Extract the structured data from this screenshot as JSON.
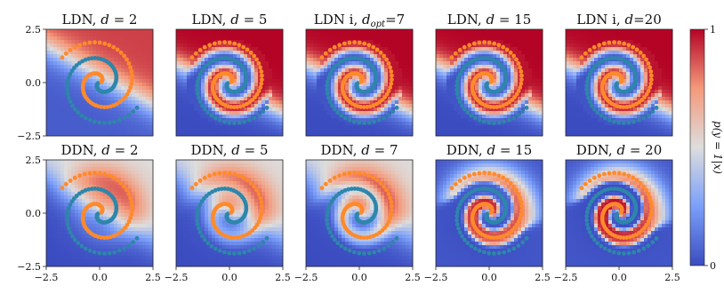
{
  "chart_data": {
    "type": "heatmap",
    "description_type": "grid of decision-boundary heatmaps with scatter overlay",
    "xlim": [
      -2.5,
      2.5
    ],
    "ylim": [
      -2.5,
      2.5
    ],
    "x_tick_labels": [
      "−2.5",
      "0.0",
      "2.5"
    ],
    "y_tick_labels": [
      "2.5",
      "0.0",
      "−2.5"
    ],
    "tick_values": [
      -2.5,
      0.0,
      2.5
    ],
    "colorbar": {
      "label": "p(y = 1|x)",
      "range": [
        0,
        1
      ],
      "tick_labels": [
        "0",
        "1"
      ],
      "low_color": "#3b4cc0",
      "mid_color": "#dddddd",
      "high_color": "#b40426"
    },
    "series_colors": {
      "class_1": "#ff8a2b",
      "class_0": "#2e86ab"
    },
    "rows": [
      {
        "panels": [
          {
            "title_main": "LDN, ",
            "title_var": "d",
            "title_sub": "",
            "title_rest": " = 2",
            "d": 2
          },
          {
            "title_main": "LDN, ",
            "title_var": "d",
            "title_sub": "",
            "title_rest": " = 5",
            "d": 5
          },
          {
            "title_main": "LDN i, ",
            "title_var": "d",
            "title_sub": "opt",
            "title_rest": "=7",
            "d": 7
          },
          {
            "title_main": "LDN, ",
            "title_var": "d",
            "title_sub": "",
            "title_rest": " = 15",
            "d": 15
          },
          {
            "title_main": "LDN i, ",
            "title_var": "d",
            "title_sub": "",
            "title_rest": "=20",
            "d": 20
          }
        ]
      },
      {
        "panels": [
          {
            "title_main": "DDN, ",
            "title_var": "d",
            "title_sub": "",
            "title_rest": " = 2",
            "d": 2
          },
          {
            "title_main": "DDN, ",
            "title_var": "d",
            "title_sub": "",
            "title_rest": " = 5",
            "d": 5
          },
          {
            "title_main": "DDN, ",
            "title_var": "d",
            "title_sub": "",
            "title_rest": " = 7",
            "d": 7
          },
          {
            "title_main": "DDN, ",
            "title_var": "d",
            "title_sub": "",
            "title_rest": " = 15",
            "d": 15
          },
          {
            "title_main": "DDN, ",
            "title_var": "d",
            "title_sub": "",
            "title_rest": " = 20",
            "d": 20
          }
        ]
      }
    ]
  }
}
